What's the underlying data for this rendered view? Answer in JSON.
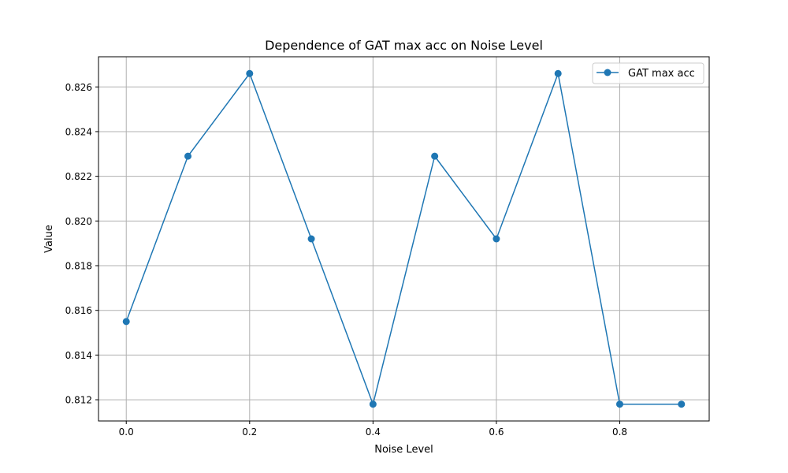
{
  "chart_data": {
    "type": "line",
    "title": "Dependence of GAT max acc on Noise Level",
    "xlabel": "Noise Level",
    "ylabel": "Value",
    "xlim": [
      -0.045,
      0.945
    ],
    "ylim": [
      0.81105,
      0.82735
    ],
    "xticks": [
      0.0,
      0.2,
      0.4,
      0.6,
      0.8
    ],
    "xtick_labels": [
      "0.0",
      "0.2",
      "0.4",
      "0.6",
      "0.8"
    ],
    "yticks": [
      0.812,
      0.814,
      0.816,
      0.818,
      0.82,
      0.822,
      0.824,
      0.826
    ],
    "ytick_labels": [
      "0.812",
      "0.814",
      "0.816",
      "0.818",
      "0.820",
      "0.822",
      "0.824",
      "0.826"
    ],
    "grid": true,
    "legend_position": "top-right",
    "series": [
      {
        "name": "GAT max acc",
        "color": "#1f77b4",
        "marker": "circle",
        "x": [
          0.0,
          0.1,
          0.2,
          0.3,
          0.4,
          0.5,
          0.6,
          0.7,
          0.8,
          0.9
        ],
        "y": [
          0.8155,
          0.8229,
          0.8266,
          0.8192,
          0.8118,
          0.8229,
          0.8192,
          0.8266,
          0.8118,
          0.8118
        ]
      }
    ]
  }
}
